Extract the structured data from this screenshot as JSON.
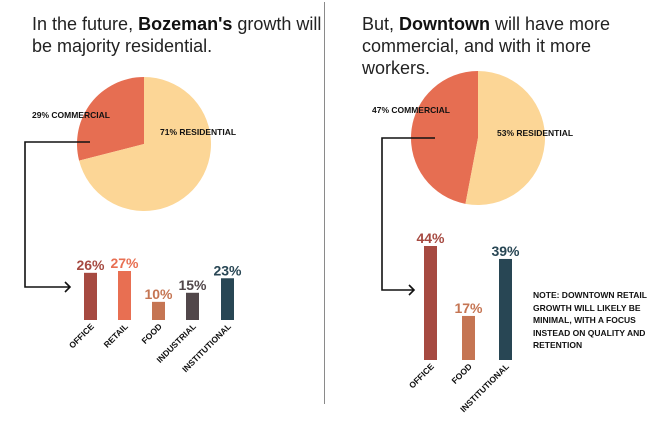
{
  "colors": {
    "residential": "#fcd696",
    "commercial": "#e66e52",
    "office": "#a64a41",
    "retail": "#e86f52",
    "food": "#c57553",
    "industrial": "#51474a",
    "institutional": "#284654",
    "connector": "#111111",
    "divider": "#8a8a8a"
  },
  "left": {
    "headline_pre": "In the future, ",
    "headline_bold": "Bozeman's",
    "headline_post": " growth will be majority residential."
  },
  "right": {
    "headline_pre": "But, ",
    "headline_bold": "Downtown",
    "headline_post": " will have more commercial, and with it more workers."
  },
  "note": "NOTE: DOWNTOWN RETAIL GROWTH WILL LIKELY BE MINIMAL, WITH A FOCUS INSTEAD ON QUALITY AND RETENTION",
  "chart_data": [
    {
      "type": "pie",
      "title": "Bozeman growth",
      "slices": [
        {
          "name": "COMMERCIAL",
          "value": 29,
          "label": "29% COMMERCIAL",
          "color_key": "commercial"
        },
        {
          "name": "RESIDENTIAL",
          "value": 71,
          "label": "71% RESIDENTIAL",
          "color_key": "residential"
        }
      ]
    },
    {
      "type": "bar",
      "title": "Bozeman commercial breakdown",
      "categories": [
        "OFFICE",
        "RETAIL",
        "FOOD",
        "INDUSTRIAL",
        "INSTITUTIONAL"
      ],
      "values": [
        26,
        27,
        10,
        15,
        23
      ],
      "value_labels": [
        "26%",
        "27%",
        "10%",
        "15%",
        "23%"
      ],
      "color_keys": [
        "office",
        "retail",
        "food",
        "industrial",
        "institutional"
      ],
      "ylim": [
        0,
        27
      ]
    },
    {
      "type": "pie",
      "title": "Downtown growth",
      "slices": [
        {
          "name": "COMMERCIAL",
          "value": 47,
          "label": "47% COMMERCIAL",
          "color_key": "commercial"
        },
        {
          "name": "RESIDENTIAL",
          "value": 53,
          "label": "53% RESIDENTIAL",
          "color_key": "residential"
        }
      ]
    },
    {
      "type": "bar",
      "title": "Downtown commercial breakdown",
      "categories": [
        "OFFICE",
        "FOOD",
        "INSTITUTIONAL"
      ],
      "values": [
        44,
        17,
        39
      ],
      "value_labels": [
        "44%",
        "17%",
        "39%"
      ],
      "color_keys": [
        "office",
        "food",
        "institutional"
      ],
      "ylim": [
        0,
        44
      ]
    }
  ]
}
